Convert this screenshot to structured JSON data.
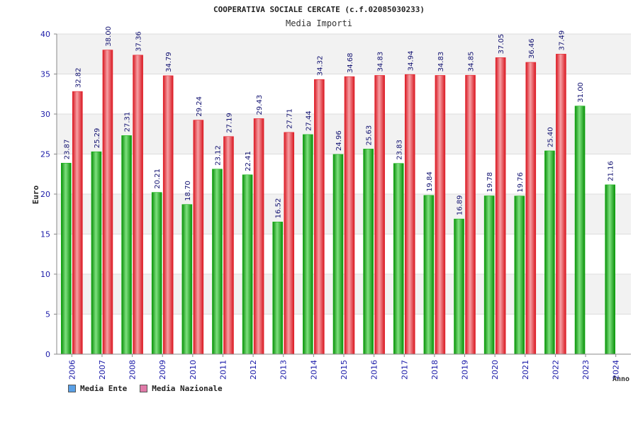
{
  "chart_data": {
    "type": "bar",
    "title": "COOPERATIVA SOCIALE CERCATE (c.f.02085030233)",
    "subtitle": "Media Importi",
    "ylabel": "Euro",
    "xlabel": "Anno",
    "ylim": [
      0,
      40
    ],
    "yticks": [
      0,
      5,
      10,
      15,
      20,
      25,
      30,
      35,
      40
    ],
    "grid": true,
    "legend_position": "bottom-left",
    "categories": [
      "2006",
      "2007",
      "2008",
      "2009",
      "2010",
      "2011",
      "2012",
      "2013",
      "2014",
      "2015",
      "2016",
      "2017",
      "2018",
      "2019",
      "2020",
      "2021",
      "2022",
      "2023",
      "2024"
    ],
    "series": [
      {
        "name": "Media Ente",
        "color": "#11b511",
        "legend_color": "#5aa0e6",
        "values": [
          23.87,
          25.29,
          27.31,
          20.21,
          18.7,
          23.12,
          22.41,
          16.52,
          27.44,
          24.96,
          25.63,
          23.83,
          19.84,
          16.89,
          19.78,
          19.76,
          25.4,
          31.0,
          21.16
        ],
        "labels": [
          "23.87",
          "25.29",
          "27.31",
          "20.21",
          "18.70",
          "23.12",
          "22.41",
          "16.52",
          "27.44",
          "24.96",
          "25.63",
          "23.83",
          "19.84",
          "16.89",
          "19.78",
          "19.76",
          "25.40",
          "31.00",
          "21.16"
        ]
      },
      {
        "name": "Media Nazionale",
        "color": "#e8202a",
        "legend_color": "#e07aa8",
        "values": [
          32.82,
          38.0,
          37.36,
          34.79,
          29.24,
          27.19,
          29.43,
          27.71,
          34.32,
          34.68,
          34.83,
          34.94,
          34.83,
          34.85,
          37.05,
          36.46,
          37.49,
          null,
          null
        ],
        "labels": [
          "32.82",
          "38.00",
          "37.36",
          "34.79",
          "29.24",
          "27.19",
          "29.43",
          "27.71",
          "34.32",
          "34.68",
          "34.83",
          "34.94",
          "34.83",
          "34.85",
          "37.05",
          "36.46",
          "37.49",
          null,
          null
        ]
      }
    ]
  }
}
